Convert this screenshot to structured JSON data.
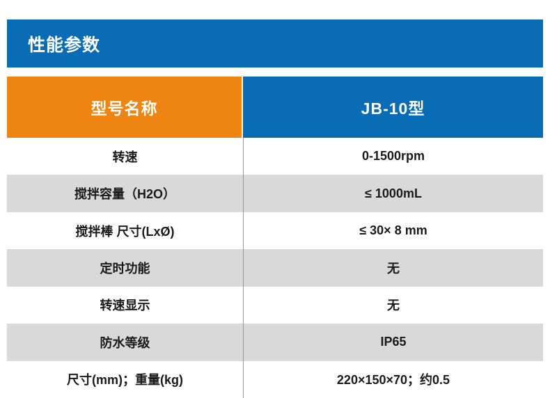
{
  "banner": {
    "title": "性能参数",
    "bg_color": "#0a6cb5",
    "text_color": "#ffffff"
  },
  "table": {
    "header": {
      "label": "型号名称",
      "value": "JB-10型",
      "label_bg_color": "#ee8411",
      "value_bg_color": "#0a6cb5"
    },
    "zebra_bg_color": "#d9d9d9",
    "divider_color": "#979797",
    "rows": [
      {
        "label": "转速",
        "value": "0-1500rpm"
      },
      {
        "label": "搅拌容量（H2O）",
        "value": "≤ 1000mL"
      },
      {
        "label": "搅拌棒 尺寸(LxØ)",
        "value": "≤ 30× 8 mm"
      },
      {
        "label": "定时功能",
        "value": "无"
      },
      {
        "label": "转速显示",
        "value": "无"
      },
      {
        "label": "防水等级",
        "value": "IP65"
      },
      {
        "label": "尺寸(mm)；重量(kg)",
        "value": "220×150×70；约0.5"
      }
    ]
  }
}
